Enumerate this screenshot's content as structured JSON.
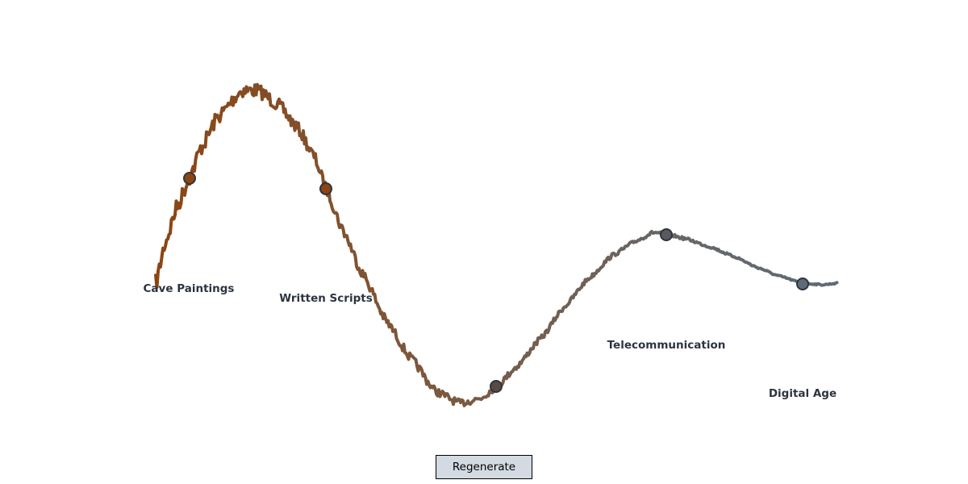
{
  "diagram": {
    "milestones": [
      {
        "label": "Cave Paintings",
        "color": "#8b4513"
      },
      {
        "label": "Written Scripts",
        "color": "#8b4513"
      },
      {
        "label": "",
        "color": "#5a4a42"
      },
      {
        "label": "Telecommunication",
        "color": "#5a5a5a"
      },
      {
        "label": "Digital Age",
        "color": "#5e6a75"
      }
    ],
    "line_colors": {
      "start": "#8b4513",
      "end": "#5e6a75"
    },
    "marker_stroke": "#2d3440"
  },
  "controls": {
    "regenerate_label": "Regenerate"
  }
}
